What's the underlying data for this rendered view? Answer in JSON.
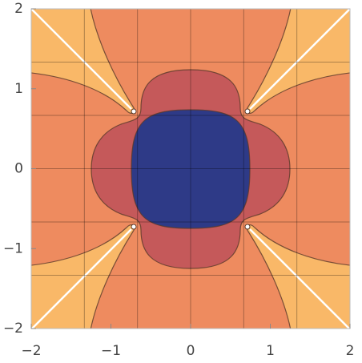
{
  "chart_data": {
    "type": "contour",
    "xlim": [
      -2,
      2
    ],
    "ylim": [
      -2,
      2
    ],
    "xticks": [
      {
        "value": -2,
        "label": "−2"
      },
      {
        "value": -1,
        "label": "−1"
      },
      0,
      1,
      2
    ],
    "yticks": [
      {
        "value": -2,
        "label": "−2"
      },
      {
        "value": -1,
        "label": "−1"
      },
      0,
      1,
      2
    ],
    "region_colors": [
      "#ee8b5f",
      "#f9b868",
      "#c5595a",
      "#2e3a87"
    ]
  }
}
